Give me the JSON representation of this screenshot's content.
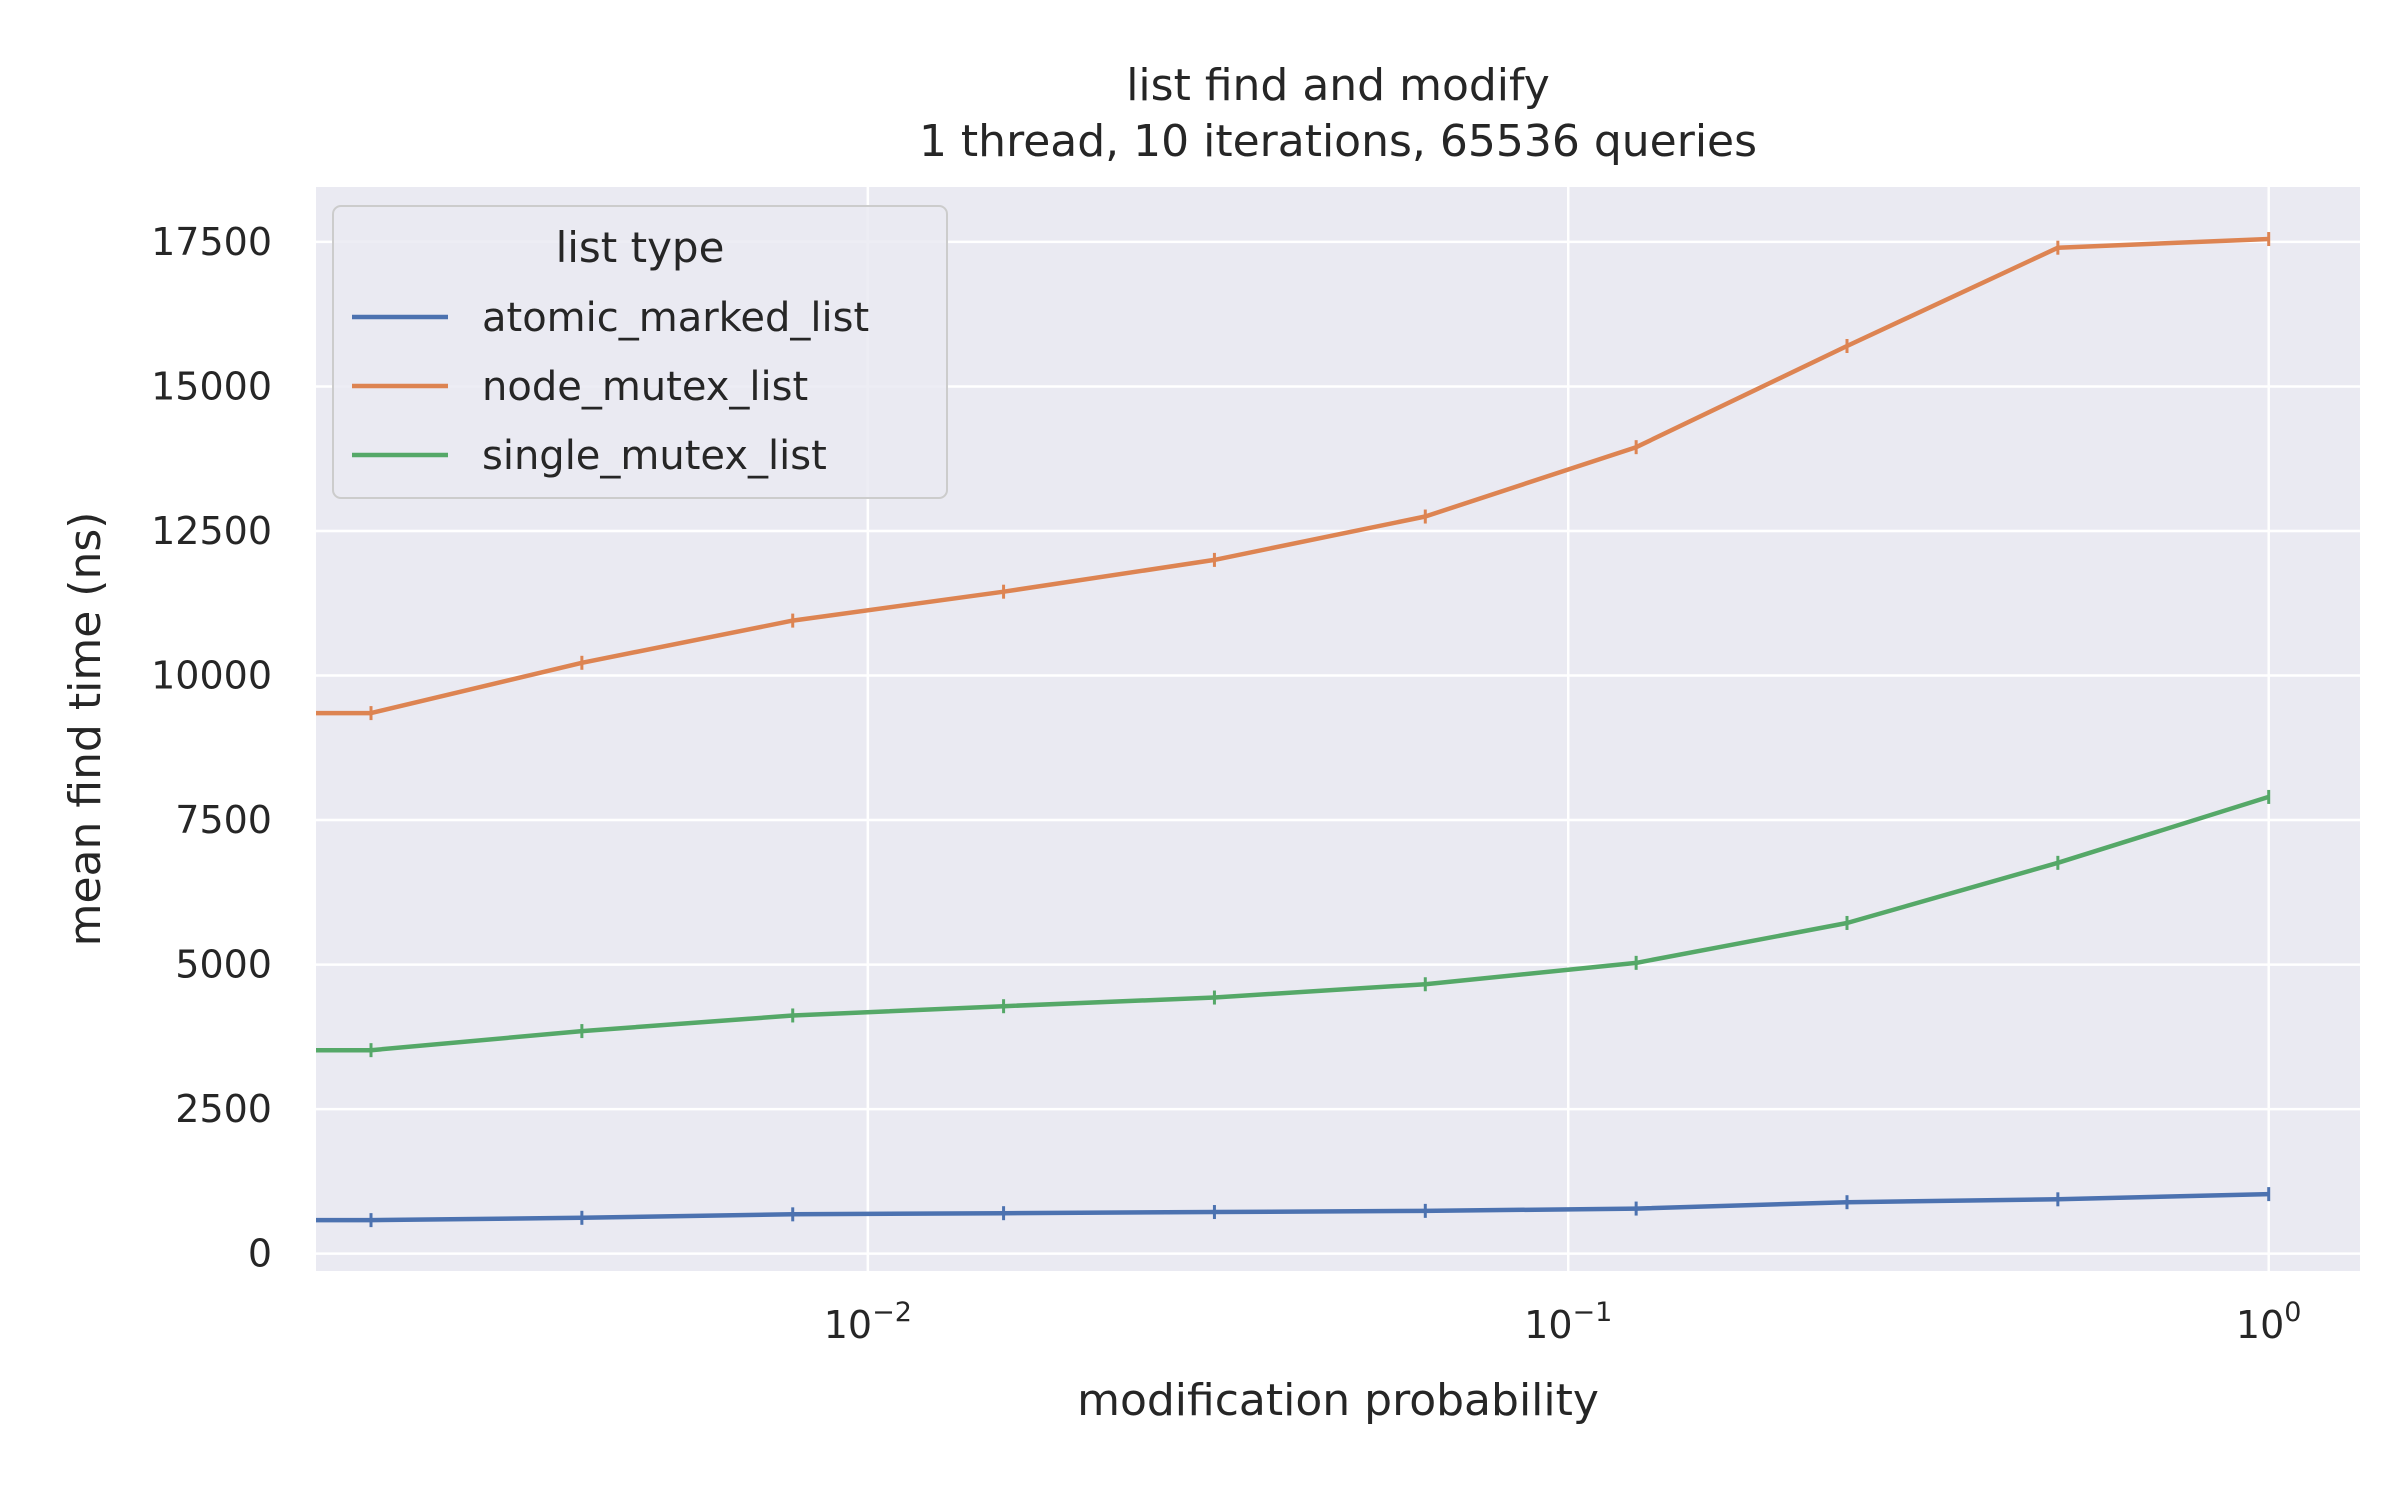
{
  "chart_data": {
    "type": "line",
    "title": "list find and modify",
    "subtitle": "1 thread, 10 iterations, 65536 queries",
    "xlabel": "modification probability",
    "ylabel": "mean find time (ns)",
    "x_scale": "log",
    "xlim": [
      0.00163,
      1.35
    ],
    "ylim": [
      -300,
      18450
    ],
    "x_ticks": [
      {
        "base": "10",
        "exp": "−2",
        "value": 0.01
      },
      {
        "base": "10",
        "exp": "−1",
        "value": 0.1
      },
      {
        "base": "10",
        "exp": "0",
        "value": 1
      }
    ],
    "y_ticks": [
      0,
      2500,
      5000,
      7500,
      10000,
      12500,
      15000,
      17500
    ],
    "y_tick_labels": [
      "0",
      "2500",
      "5000",
      "7500",
      "10000",
      "12500",
      "15000",
      "17500"
    ],
    "grid": true,
    "legend": {
      "title": "list type",
      "position": "top-left"
    },
    "x": [
      0.001953125,
      0.00390625,
      0.0078125,
      0.015625,
      0.03125,
      0.0625,
      0.125,
      0.25,
      0.5,
      1.0
    ],
    "series": [
      {
        "name": "atomic_marked_list",
        "color": "#4c72b0",
        "values": [
          580,
          620,
          680,
          700,
          720,
          740,
          780,
          890,
          940,
          1030
        ],
        "leading_value": 580
      },
      {
        "name": "node_mutex_list",
        "color": "#dd8452",
        "values": [
          9350,
          10220,
          10950,
          11450,
          12000,
          12750,
          13950,
          15700,
          17400,
          17550
        ],
        "leading_value": 9350
      },
      {
        "name": "single_mutex_list",
        "color": "#55a868",
        "values": [
          3520,
          3850,
          4120,
          4280,
          4430,
          4660,
          5030,
          5720,
          6760,
          7900
        ],
        "leading_value": 3520
      }
    ]
  }
}
